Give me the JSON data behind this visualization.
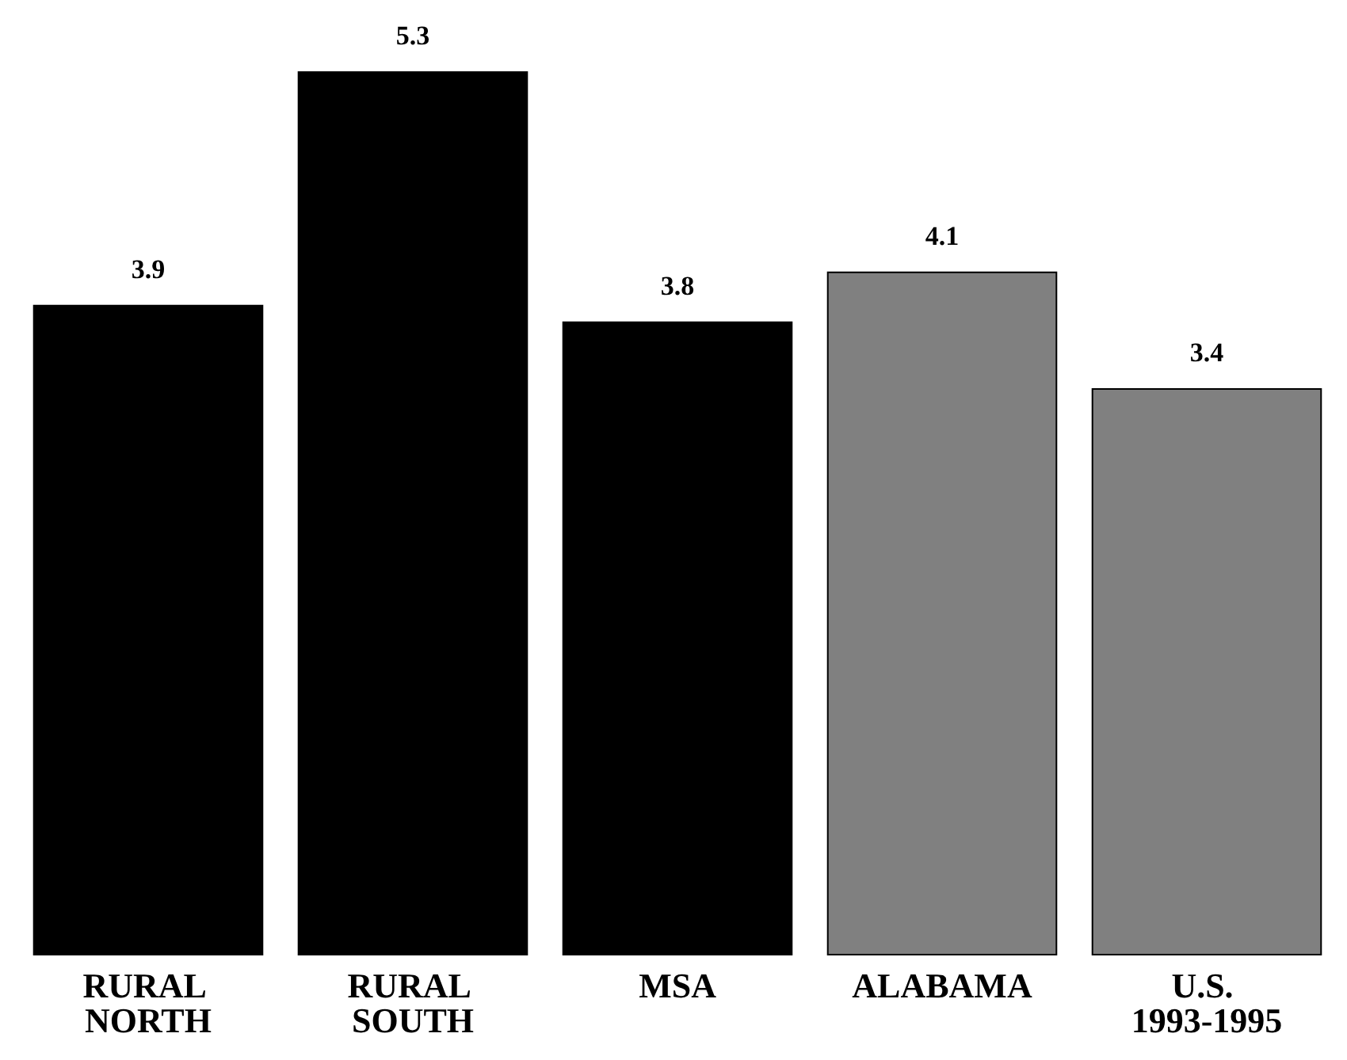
{
  "chart_data": {
    "type": "bar",
    "categories": [
      "RURAL NORTH",
      "RURAL SOUTH",
      "MSA",
      "ALABAMA",
      "U.S. 1993-1995"
    ],
    "values": [
      3.9,
      5.3,
      3.8,
      4.1,
      3.4
    ],
    "colors": [
      "#000000",
      "#000000",
      "#000000",
      "#808080",
      "#808080"
    ],
    "data_labels": true
  }
}
